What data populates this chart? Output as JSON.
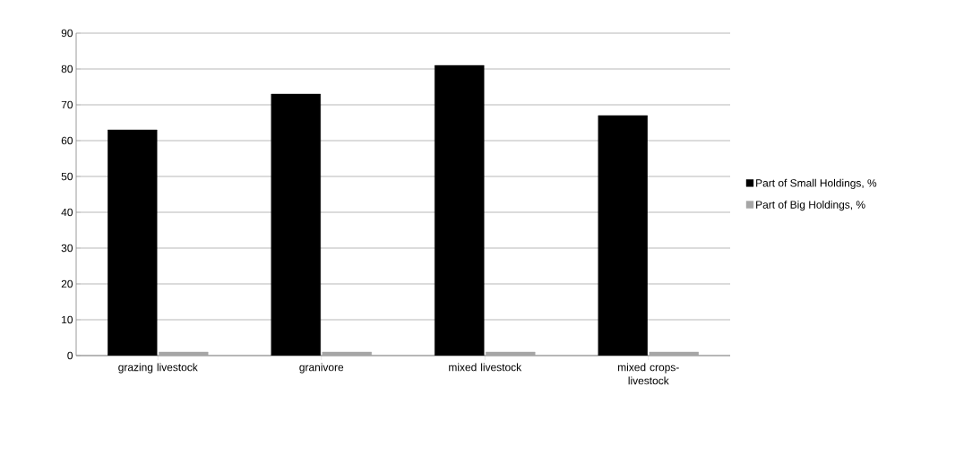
{
  "chart_data": {
    "type": "bar",
    "categories": [
      "grazing livestock",
      "granivore",
      "mixed livestock",
      "mixed crops-livestock"
    ],
    "series": [
      {
        "name": "Part of Small Holdings, %",
        "color": "#000000",
        "values": [
          63,
          73,
          81,
          67
        ]
      },
      {
        "name": "Part of Big Holdings,  %",
        "color": "#a6a6a6",
        "values": [
          1,
          1,
          1,
          1
        ]
      }
    ],
    "ylim": [
      0,
      90
    ],
    "yticks": [
      0,
      10,
      20,
      30,
      40,
      50,
      60,
      70,
      80,
      90
    ],
    "grid": "y",
    "legend": "right"
  }
}
